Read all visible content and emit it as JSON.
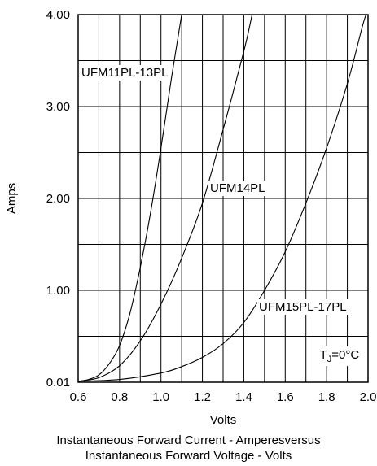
{
  "chart_data": {
    "type": "line",
    "xlabel": "Volts",
    "ylabel": "Amps",
    "caption_line1": "Instantaneous Forward Current - Amperesversus",
    "caption_line2": "Instantaneous Forward Voltage - Volts",
    "xlim": [
      0.6,
      2.0
    ],
    "ylim": [
      0.01,
      4.0
    ],
    "x_ticks": [
      0.6,
      0.8,
      1.0,
      1.2,
      1.4,
      1.6,
      1.8,
      2.0
    ],
    "x_tick_labels": [
      "0.6",
      "0.8",
      "1.0",
      "1.2",
      "1.4",
      "1.6",
      "1.8",
      "2.0"
    ],
    "y_ticks": [
      0.01,
      1.0,
      2.0,
      3.0,
      4.0
    ],
    "y_tick_labels": [
      "0.01",
      "1.00",
      "2.00",
      "3.00",
      "4.00"
    ],
    "x_minor_step": 0.1,
    "y_minor_step": 0.5,
    "grid": true,
    "series": [
      {
        "name": "UFM11PL-13PL",
        "points": [
          [
            0.6,
            0.01
          ],
          [
            0.65,
            0.03
          ],
          [
            0.7,
            0.08
          ],
          [
            0.75,
            0.2
          ],
          [
            0.8,
            0.4
          ],
          [
            0.85,
            0.75
          ],
          [
            0.9,
            1.25
          ],
          [
            0.95,
            1.85
          ],
          [
            1.0,
            2.55
          ],
          [
            1.05,
            3.3
          ],
          [
            1.1,
            4.0
          ]
        ]
      },
      {
        "name": "UFM14PL",
        "points": [
          [
            0.6,
            0.01
          ],
          [
            0.7,
            0.05
          ],
          [
            0.8,
            0.18
          ],
          [
            0.9,
            0.45
          ],
          [
            1.0,
            0.85
          ],
          [
            1.1,
            1.35
          ],
          [
            1.2,
            1.95
          ],
          [
            1.3,
            2.75
          ],
          [
            1.4,
            3.6
          ],
          [
            1.44,
            4.0
          ]
        ]
      },
      {
        "name": "UFM15PL-17PL",
        "points": [
          [
            0.6,
            0.01
          ],
          [
            0.8,
            0.03
          ],
          [
            1.0,
            0.1
          ],
          [
            1.1,
            0.17
          ],
          [
            1.2,
            0.27
          ],
          [
            1.3,
            0.42
          ],
          [
            1.4,
            0.65
          ],
          [
            1.5,
            1.0
          ],
          [
            1.6,
            1.42
          ],
          [
            1.7,
            1.95
          ],
          [
            1.8,
            2.55
          ],
          [
            1.9,
            3.25
          ],
          [
            1.97,
            3.85
          ],
          [
            1.99,
            4.0
          ]
        ]
      }
    ],
    "annotation": {
      "text_main": "T",
      "text_sub": "J",
      "text_rest": "=0°C",
      "x": 1.93,
      "y": 0.3
    }
  }
}
